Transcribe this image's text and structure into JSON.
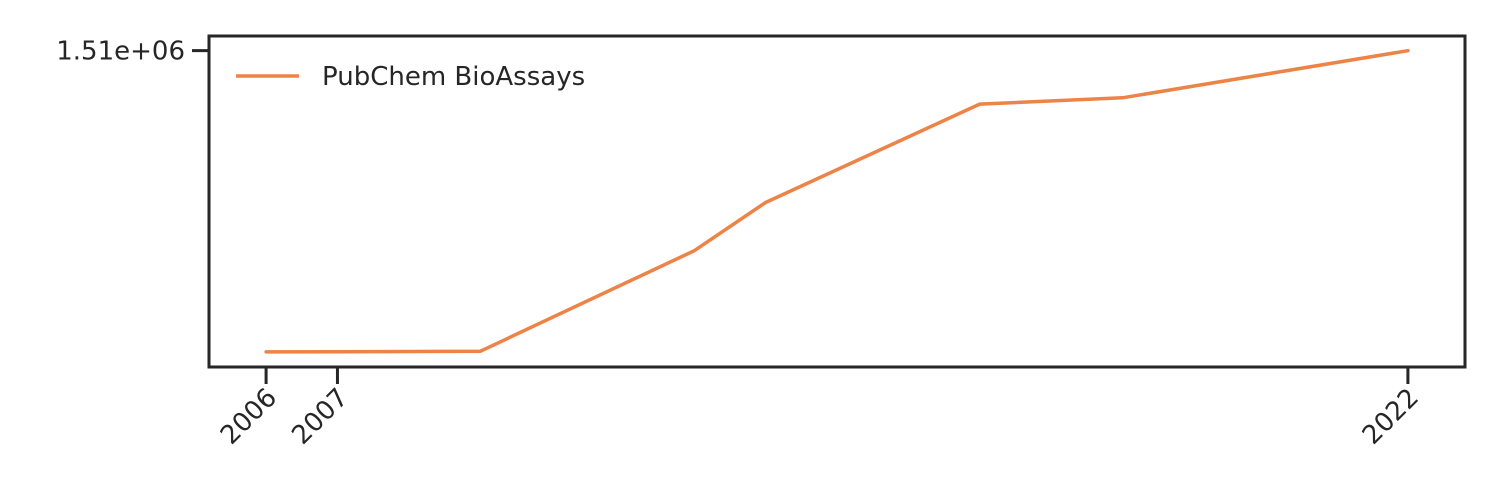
{
  "chart_data": {
    "type": "line",
    "title": "",
    "xlabel": "",
    "ylabel": "",
    "x_ticks": [
      2006,
      2007,
      2022
    ],
    "y_ticks": [
      {
        "value": 1510000,
        "label": "1.51e+06"
      }
    ],
    "xlim": [
      2005.2,
      2022.8
    ],
    "ylim": [
      0,
      1580000
    ],
    "grid": false,
    "legend": {
      "position": "top-left"
    },
    "series": [
      {
        "name": "PubChem BioAssays",
        "color": "#ed8346",
        "x": [
          2006,
          2007,
          2009,
          2012,
          2013,
          2016,
          2018,
          2022
        ],
        "y": [
          72000,
          73000,
          75000,
          555000,
          785000,
          1255000,
          1285000,
          1510000
        ]
      }
    ]
  }
}
